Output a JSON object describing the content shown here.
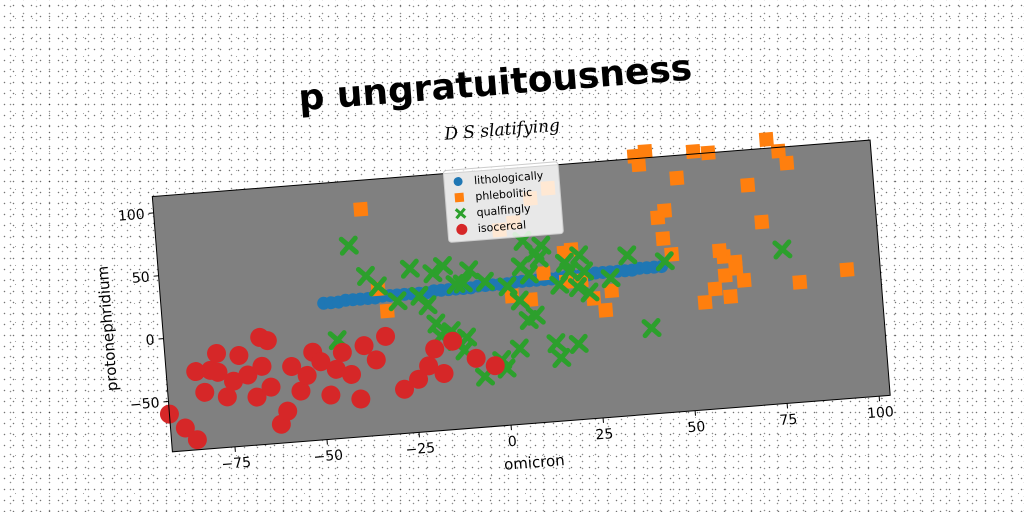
{
  "chart_data": {
    "type": "scatter",
    "title": "p ungratuitousness",
    "subtitle": "D S slatifying",
    "xlabel": "omicron",
    "ylabel": "protonephridium",
    "xlim": [
      -92,
      103
    ],
    "ylim": [
      -90,
      113
    ],
    "xticks": [
      -75,
      -50,
      -25,
      0,
      25,
      50,
      75,
      100
    ],
    "yticks": [
      -50,
      0,
      50,
      100
    ],
    "grid": false,
    "legend_position": "top-center",
    "plot_background": "#808080",
    "series": [
      {
        "name": "lithologically",
        "marker": "circle",
        "color": "#1f77b4",
        "x": [
          -48,
          -46,
          -44,
          -42,
          -40,
          -38,
          -36,
          -34,
          -32,
          -30,
          -28,
          -26,
          -24,
          -22,
          -20,
          -18,
          -16,
          -14,
          -12,
          -10,
          -8,
          -6,
          -4,
          -2,
          0,
          2,
          4,
          6,
          8,
          10,
          12,
          14,
          16,
          18,
          20,
          22,
          24,
          26,
          28,
          30,
          32,
          34,
          36,
          38,
          40,
          42,
          44
        ],
        "y": [
          18,
          18,
          18,
          19,
          19,
          19,
          19,
          19,
          20,
          20,
          20,
          20,
          20,
          20,
          20,
          21,
          21,
          21,
          21,
          21,
          21,
          22,
          22,
          22,
          22,
          22,
          23,
          23,
          23,
          23,
          23,
          23,
          24,
          24,
          24,
          24,
          24,
          25,
          25,
          25,
          25,
          25,
          25,
          26,
          26,
          26,
          26
        ]
      },
      {
        "name": "phlebolitic",
        "marker": "square",
        "color": "#ff7f0e",
        "x": [
          -36,
          -33,
          -31,
          1,
          5,
          10,
          15,
          18,
          20,
          22,
          25,
          28,
          30,
          39,
          40,
          42,
          44,
          46,
          45,
          47,
          50,
          55,
          59,
          61,
          61,
          62,
          64,
          64,
          66,
          69,
          72,
          75,
          78,
          80,
          81,
          94,
          60,
          58,
          55,
          3,
          8,
          18,
          12
        ],
        "y": [
          90,
          26,
          8,
          65,
          70,
          88,
          95,
          43,
          45,
          20,
          5,
          -5,
          10,
          115,
          108,
          118,
          65,
          70,
          48,
          35,
          95,
          115,
          113,
          15,
          30,
          -2,
          25,
          20,
          10,
          85,
          55,
          120,
          110,
          100,
          5,
          12,
          35,
          5,
          -5,
          12,
          8,
          20,
          28
        ]
      },
      {
        "name": "qualfingly",
        "marker": "x",
        "color": "#2ca02c",
        "x": [
          -40,
          -36,
          -33,
          -28,
          -24,
          -22,
          -20,
          -18,
          -17,
          -15,
          -14,
          -13,
          -12,
          -11,
          -10,
          -8,
          -6,
          -4,
          -1,
          0,
          2,
          4,
          6,
          7,
          8,
          9,
          10,
          11,
          12,
          14,
          15,
          16,
          18,
          19,
          20,
          21,
          22,
          23,
          24,
          30,
          35,
          40,
          -45,
          -18,
          -10,
          5,
          7,
          45,
          77
        ],
        "y": [
          62,
          37,
          28,
          15,
          40,
          18,
          10,
          35,
          -15,
          40,
          -12,
          -20,
          25,
          -28,
          25,
          35,
          -50,
          25,
          -38,
          -45,
          20,
          -30,
          35,
          55,
          28,
          -5,
          45,
          40,
          50,
          -28,
          -40,
          18,
          35,
          28,
          -30,
          15,
          40,
          27,
          10,
          20,
          37,
          -22,
          -12,
          -5,
          -18,
          8,
          -8,
          30,
          32
        ]
      },
      {
        "name": "isocercal",
        "marker": "circle-large",
        "color": "#d62728",
        "x": [
          -92,
          -88,
          -85,
          -82,
          -80,
          -78,
          -76,
          -74,
          -72,
          -70,
          -68,
          -66,
          -64,
          -62,
          -60,
          -58,
          -56,
          -54,
          -52,
          -50,
          -48,
          -46,
          -44,
          -42,
          -40,
          -38,
          -35,
          -32,
          -28,
          -24,
          -21,
          -19,
          -17,
          -14,
          -8,
          -3,
          -66,
          -64,
          -84,
          -78
        ],
        "y": [
          -60,
          -72,
          -82,
          -45,
          -28,
          -15,
          -50,
          -38,
          -18,
          -34,
          -52,
          -28,
          -45,
          -75,
          -65,
          -30,
          -50,
          -38,
          -20,
          -28,
          -55,
          -35,
          -22,
          -40,
          -60,
          -18,
          -30,
          -12,
          -55,
          -48,
          -38,
          -25,
          -45,
          -20,
          -35,
          -42,
          -5,
          -8,
          -28,
          -30
        ]
      }
    ]
  }
}
